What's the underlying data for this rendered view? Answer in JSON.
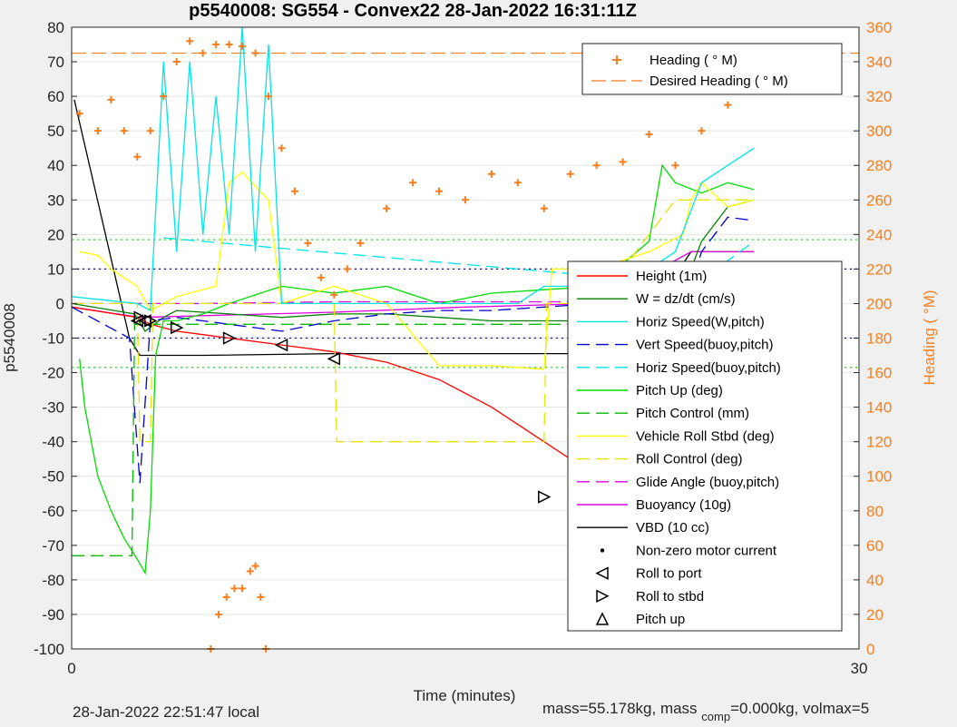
{
  "chart_data": {
    "type": "line",
    "title": "p5540008: SG554 - Convex22 28-Jan-2022 16:31:11Z",
    "xlabel": "Time (minutes)",
    "ylabel": "p5540008",
    "ylabel_right": "Heading (  °M)",
    "xlim": [
      0,
      30
    ],
    "ylim": [
      -100,
      80
    ],
    "ylim_right": [
      0,
      360
    ],
    "x_ticks": [
      "0",
      "30"
    ],
    "y_ticks": [
      "80",
      "70",
      "60",
      "50",
      "40",
      "30",
      "20",
      "10",
      "0",
      "-10",
      "-20",
      "-30",
      "-40",
      "-50",
      "-60",
      "-70",
      "-80",
      "-90",
      "-100"
    ],
    "y_right_ticks": [
      "360",
      "340",
      "320",
      "300",
      "280",
      "260",
      "240",
      "220",
      "200",
      "180",
      "160",
      "140",
      "120",
      "100",
      "80",
      "60",
      "40",
      "20",
      "0"
    ],
    "grid": "horizontal",
    "colors": {
      "height": "#ff0000",
      "w": "#008000",
      "horiz_w": "#00e5e5",
      "vert_buoy": "#0000cc",
      "horiz_buoy": "#00e5e5",
      "pitch_up": "#00dd00",
      "pitch_ctrl": "#00bb00",
      "roll": "#ffff00",
      "roll_ctrl": "#e5e500",
      "glide": "#e000e0",
      "buoyancy": "#e000e0",
      "vbd": "#000000",
      "heading": "#f47e20"
    },
    "top_legend": {
      "placement": "top-right",
      "entries": [
        {
          "label": "Heading (  ° M)",
          "marker": "+",
          "color": "#f47e20"
        },
        {
          "label": "Desired Heading (    ° M)",
          "marker": "dash",
          "color": "#f47e20"
        }
      ]
    },
    "legend": {
      "placement": "right",
      "entries": [
        {
          "label": "Height (1m)",
          "style": "solid",
          "color": "#ff0000"
        },
        {
          "label": "W = dz/dt (cm/s)",
          "style": "solid",
          "color": "#008000"
        },
        {
          "label": "Horiz Speed(W,pitch)",
          "style": "solid",
          "color": "#00e5e5"
        },
        {
          "label": "Vert Speed(buoy,pitch)",
          "style": "dash",
          "color": "#0000cc"
        },
        {
          "label": "Horiz Speed(buoy,pitch)",
          "style": "dash",
          "color": "#00e5e5"
        },
        {
          "label": "Pitch Up (deg)",
          "style": "solid",
          "color": "#00dd00"
        },
        {
          "label": "Pitch Control (mm)",
          "style": "dash",
          "color": "#00bb00"
        },
        {
          "label": "Vehicle Roll Stbd (deg)",
          "style": "solid",
          "color": "#ffff00"
        },
        {
          "label": "Roll Control (deg)",
          "style": "dash",
          "color": "#e5e500"
        },
        {
          "label": "Glide Angle (buoy,pitch)",
          "style": "dash",
          "color": "#e000e0"
        },
        {
          "label": "Buoyancy (10g)",
          "style": "solid",
          "color": "#e000e0"
        },
        {
          "label": "VBD (10 cc)",
          "style": "solid",
          "color": "#000000"
        },
        {
          "label": "Non-zero motor current",
          "style": "dot",
          "color": "#000000"
        },
        {
          "label": "Roll to port",
          "style": "tri-left",
          "color": "#000000"
        },
        {
          "label": "Roll to stbd",
          "style": "tri-right",
          "color": "#000000"
        },
        {
          "label": "Pitch up",
          "style": "tri-up",
          "color": "#000000"
        }
      ]
    },
    "series": [
      {
        "key": "vbd",
        "name": "VBD (10 cc)",
        "color": "#000000",
        "style": "solid",
        "x": [
          0.1,
          2.2,
          2.6,
          5.0,
          10.0,
          20.0,
          21.0,
          23.6,
          26.0
        ],
        "y": [
          59,
          -10,
          -15,
          -15,
          -14.5,
          -14.5,
          -14.5,
          15,
          15
        ]
      },
      {
        "key": "buoyancy",
        "name": "Buoyancy (10g)",
        "color": "#e000e0",
        "style": "solid",
        "x": [
          0,
          2.6,
          5,
          10,
          15,
          20,
          23.6,
          26
        ],
        "y": [
          -1,
          -4,
          -3.5,
          -2.5,
          -1,
          0,
          15,
          15
        ]
      },
      {
        "key": "glide",
        "name": "Glide Angle (buoy,pitch)",
        "color": "#e000e0",
        "style": "dash",
        "x": [
          0,
          5,
          10,
          15,
          20,
          24,
          26
        ],
        "y": [
          0,
          0,
          0.5,
          0.5,
          0.5,
          0.5,
          0.5
        ]
      },
      {
        "key": "height",
        "name": "Height (1m)",
        "color": "#ff0000",
        "style": "solid",
        "x": [
          0,
          2.5,
          3.0,
          4.0,
          5.0,
          6.0,
          8.0,
          10.0,
          12.0,
          14.0,
          16.0,
          18.0,
          19.0,
          20.0,
          21.0,
          22.0,
          22.5,
          23.0,
          23.5,
          24.0,
          25.0,
          26.0
        ],
        "y": [
          -1,
          -4,
          -6,
          -8,
          -9,
          -10,
          -12,
          -14,
          -17,
          -22,
          -30,
          -40,
          -45,
          -51,
          -56,
          -60,
          -62,
          -63,
          -62,
          -57,
          -35,
          -10
        ]
      },
      {
        "key": "w",
        "name": "W = dz/dt (cm/s)",
        "color": "#008000",
        "style": "solid",
        "x": [
          0,
          2.4,
          2.8,
          3.5,
          4,
          6,
          8,
          10,
          12,
          14,
          16,
          18,
          20,
          22,
          23,
          23.6,
          24,
          25,
          26
        ],
        "y": [
          0,
          -3,
          -8,
          -4,
          -2,
          -3,
          -4,
          -3,
          -3,
          -4,
          -5,
          -5,
          -5,
          -3,
          -1,
          10,
          18,
          28,
          30
        ]
      },
      {
        "key": "vert_buoy",
        "name": "Vert Speed(buoy,pitch)",
        "color": "#0000cc",
        "style": "dash",
        "x": [
          0,
          2.2,
          2.6,
          3.0,
          4,
          6,
          8,
          10,
          12,
          14,
          16,
          18,
          20,
          22,
          23.5,
          24,
          25,
          26
        ],
        "y": [
          -1,
          -10,
          -52,
          -5,
          -4,
          -6,
          -8,
          -5,
          -3,
          -2,
          -2,
          -1,
          0,
          1,
          3,
          15,
          25,
          24
        ]
      },
      {
        "key": "horiz_buoy",
        "name": "Horiz Speed(buoy,pitch)",
        "color": "#00e5e5",
        "style": "dash",
        "x": [
          3.5,
          5,
          8,
          11,
          14,
          17,
          20,
          22,
          23.5,
          26
        ],
        "y": [
          19,
          18,
          16,
          14,
          12,
          10,
          8,
          6,
          4,
          18
        ]
      },
      {
        "key": "pitch_up",
        "name": "Pitch Up (deg)",
        "color": "#00dd00",
        "style": "solid",
        "x": [
          0.3,
          0.5,
          1.0,
          1.5,
          2.0,
          2.5,
          2.8,
          3.0,
          3.2,
          3.5,
          4.0,
          5.0,
          6.0,
          8.0,
          10.0,
          12.0,
          14.0,
          16.0,
          18.0,
          20.0,
          22.0,
          22.5,
          23.0,
          24.0,
          25.0,
          26.0
        ],
        "y": [
          -16,
          -30,
          -50,
          -60,
          -68,
          -74,
          -78,
          -60,
          -15,
          -5,
          -5,
          -3,
          0,
          5,
          3,
          5,
          0,
          3,
          4,
          5,
          18,
          40,
          35,
          32,
          35,
          33
        ]
      },
      {
        "key": "pitch_ctrl",
        "name": "Pitch Control (mm)",
        "color": "#00bb00",
        "style": "dash",
        "x": [
          0,
          2.3,
          2.4,
          3.0,
          10,
          20,
          23,
          23.5,
          26
        ],
        "y": [
          -73,
          -73,
          -6,
          -6,
          -6,
          -6,
          -6,
          8,
          8
        ]
      },
      {
        "key": "roll",
        "name": "Vehicle Roll Stbd (deg)",
        "color": "#ffff00",
        "style": "solid",
        "x": [
          0.3,
          1.0,
          1.5,
          2.5,
          3.0,
          4.0,
          5.5,
          6.0,
          6.5,
          7.5,
          8.0,
          10.0,
          12.0,
          14.0,
          16.0,
          18.0,
          18.3,
          20.0,
          22.0,
          23.3,
          23.6,
          24.0,
          25.0,
          26.0
        ],
        "y": [
          15,
          14,
          10,
          5,
          -2,
          2,
          5,
          35,
          38,
          30,
          0,
          5,
          0,
          -18,
          -18,
          -19,
          10,
          10,
          15,
          20,
          30,
          35,
          28,
          30
        ]
      },
      {
        "key": "roll_ctrl",
        "name": "Roll Control (deg)",
        "color": "#e5e500",
        "style": "dash",
        "x": [
          0,
          2.5,
          2.6,
          3.0,
          3.1,
          10,
          10.1,
          18,
          18.1,
          20,
          23,
          26
        ],
        "y": [
          0,
          0,
          -40,
          -40,
          0,
          0,
          -40,
          -40,
          0,
          0,
          30,
          30
        ]
      },
      {
        "key": "horiz_w",
        "name": "Horiz Speed(W,pitch)",
        "color": "#00e5e5",
        "style": "solid",
        "x": [
          0,
          2.5,
          3.0,
          3.5,
          4.0,
          4.5,
          5.0,
          5.5,
          6.0,
          6.5,
          7.0,
          7.5,
          8.0,
          9.0,
          10.0,
          12.0,
          15.0,
          17.0,
          18.0,
          20.0,
          22.0,
          23.0,
          24.0,
          25.0,
          26.0
        ],
        "y": [
          2,
          0,
          -2,
          70,
          15,
          70,
          20,
          60,
          20,
          80,
          15,
          75,
          0,
          0,
          0,
          0,
          0,
          0,
          5,
          5,
          10,
          15,
          35,
          40,
          45
        ]
      },
      {
        "key": "heading",
        "name": "Heading (  ° M)",
        "color": "#f47e20",
        "style": "plus",
        "axis": "right",
        "x": [
          0.3,
          1.0,
          1.5,
          2.0,
          2.5,
          3.0,
          3.5,
          4.0,
          4.5,
          5.0,
          5.5,
          6.0,
          6.5,
          7.0,
          7.5,
          8.0,
          8.5,
          9.0,
          9.5,
          10.0,
          10.5,
          11.0,
          12.0,
          13.0,
          14.0,
          15.0,
          16.0,
          17.0,
          18.0,
          19.0,
          20.0,
          21.0,
          22.0,
          23.0,
          24.0,
          25.0,
          26.0
        ],
        "y": [
          310,
          300,
          318,
          300,
          285,
          300,
          320,
          340,
          352,
          345,
          350,
          350,
          349,
          345,
          320,
          290,
          265,
          235,
          215,
          205,
          220,
          235,
          255,
          270,
          265,
          260,
          275,
          270,
          255,
          275,
          280,
          282,
          298,
          280,
          300,
          315,
          325
        ]
      },
      {
        "key": "heading_low",
        "name": "Heading (  ° M)",
        "color": "#f47e20",
        "style": "plus",
        "axis": "right",
        "x": [
          5.3,
          5.6,
          5.9,
          6.2,
          6.5,
          6.8,
          7.0,
          7.2,
          7.4
        ],
        "y": [
          0,
          20,
          30,
          35,
          35,
          45,
          48,
          30,
          0
        ]
      }
    ],
    "desired_heading": 345,
    "hlines": [
      {
        "y": 18.5,
        "color": "#00e000",
        "style": "dot"
      },
      {
        "y": 10,
        "color": "#0000cc",
        "style": "dot"
      },
      {
        "y": -10,
        "color": "#0000cc",
        "style": "dot"
      },
      {
        "y": -18.5,
        "color": "#00e000",
        "style": "dot"
      }
    ],
    "markers": {
      "roll_to_port": {
        "x": [
          2.5,
          2.8,
          8.0,
          10.0
        ],
        "y": [
          -5,
          -5,
          -12,
          -16
        ]
      },
      "roll_to_stbd": {
        "x": [
          2.6,
          3.0,
          4.0,
          6.0,
          18.0,
          23.5
        ],
        "y": [
          -4,
          -5,
          -7,
          -10,
          -56,
          -45
        ]
      },
      "pitch_up": {
        "x": [
          21.0,
          22.2
        ],
        "y": [
          -60,
          -62
        ]
      },
      "motor_current": {
        "x": [
          21.5,
          22.0,
          22.5,
          23.0,
          23.4,
          23.8,
          24.0
        ],
        "y": [
          -62,
          -63,
          -63,
          -60,
          -55,
          -48,
          -45
        ]
      }
    }
  },
  "footer": {
    "local_time": "28-Jan-2022 22:51:47 local",
    "mass_text": "mass=55.178kg, mass",
    "comp_sub": "comp",
    "mass_rest": "=0.000kg, volmax=5"
  }
}
